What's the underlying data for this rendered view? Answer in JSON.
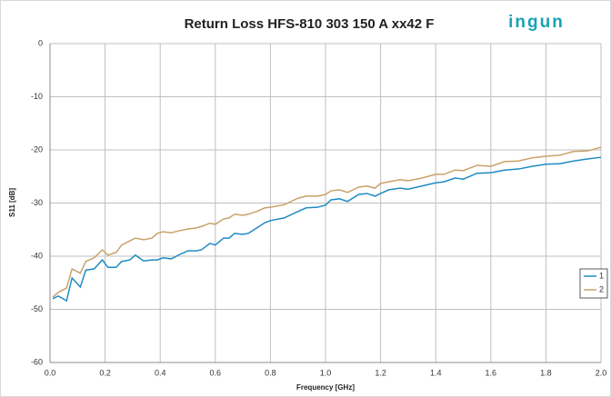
{
  "chart_data": {
    "type": "line",
    "title": "Return Loss HFS-810 303 150 A xx42 F",
    "logo": "ingun",
    "x_label": "Frequency [GHz]",
    "y_label": "S11 [dB]",
    "x": [
      0.01,
      0.03,
      0.06,
      0.08,
      0.11,
      0.13,
      0.16,
      0.19,
      0.21,
      0.24,
      0.26,
      0.29,
      0.31,
      0.34,
      0.37,
      0.39,
      0.41,
      0.44,
      0.47,
      0.5,
      0.53,
      0.55,
      0.58,
      0.6,
      0.63,
      0.65,
      0.67,
      0.7,
      0.72,
      0.75,
      0.78,
      0.8,
      0.85,
      0.9,
      0.93,
      0.97,
      1.0,
      1.02,
      1.05,
      1.08,
      1.12,
      1.15,
      1.18,
      1.2,
      1.23,
      1.27,
      1.3,
      1.35,
      1.4,
      1.43,
      1.47,
      1.5,
      1.55,
      1.6,
      1.65,
      1.7,
      1.75,
      1.8,
      1.85,
      1.9,
      1.95,
      2.0
    ],
    "series": [
      {
        "name": "1",
        "color": "#1f8bc4",
        "values": [
          -48.0,
          -47.5,
          -48.4,
          -44.1,
          -45.8,
          -42.6,
          -42.4,
          -40.7,
          -42.1,
          -42.1,
          -41.0,
          -40.7,
          -39.8,
          -40.9,
          -40.7,
          -40.7,
          -40.3,
          -40.5,
          -39.7,
          -39.0,
          -39.0,
          -38.8,
          -37.6,
          -37.9,
          -36.6,
          -36.6,
          -35.7,
          -35.9,
          -35.7,
          -34.7,
          -33.7,
          -33.3,
          -32.8,
          -31.6,
          -30.9,
          -30.8,
          -30.4,
          -29.4,
          -29.2,
          -29.7,
          -28.4,
          -28.2,
          -28.7,
          -28.2,
          -27.5,
          -27.2,
          -27.4,
          -26.8,
          -26.2,
          -26.0,
          -25.3,
          -25.5,
          -24.4,
          -24.3,
          -23.8,
          -23.6,
          -23.1,
          -22.7,
          -22.6,
          -22.1,
          -21.7,
          -21.4
        ]
      },
      {
        "name": "2",
        "color": "#c9a26a",
        "values": [
          -47.7,
          -46.8,
          -46.0,
          -42.4,
          -43.2,
          -41.0,
          -40.3,
          -38.8,
          -39.8,
          -39.3,
          -37.9,
          -37.1,
          -36.6,
          -36.9,
          -36.6,
          -35.7,
          -35.4,
          -35.6,
          -35.2,
          -34.9,
          -34.7,
          -34.4,
          -33.8,
          -34.0,
          -33.0,
          -32.8,
          -32.1,
          -32.3,
          -32.1,
          -31.6,
          -30.9,
          -30.8,
          -30.3,
          -29.1,
          -28.7,
          -28.7,
          -28.4,
          -27.7,
          -27.5,
          -28.0,
          -27.0,
          -26.8,
          -27.2,
          -26.3,
          -26.0,
          -25.6,
          -25.8,
          -25.3,
          -24.6,
          -24.6,
          -23.8,
          -23.9,
          -22.9,
          -23.1,
          -22.2,
          -22.1,
          -21.5,
          -21.2,
          -21.0,
          -20.3,
          -20.2,
          -19.5
        ]
      }
    ],
    "xlim": [
      0,
      2
    ],
    "xticks": [
      {
        "value": 0,
        "label": "0.0"
      },
      {
        "value": 0.2,
        "label": "0.2"
      },
      {
        "value": 0.4,
        "label": "0.4"
      },
      {
        "value": 0.6,
        "label": "0.6"
      },
      {
        "value": 0.8,
        "label": "0.8"
      },
      {
        "value": 1,
        "label": "1.0"
      },
      {
        "value": 1.2,
        "label": "1.2"
      },
      {
        "value": 1.4,
        "label": "1.4"
      },
      {
        "value": 1.6,
        "label": "1.6"
      },
      {
        "value": 1.8,
        "label": "1.8"
      },
      {
        "value": 2,
        "label": "2.0"
      }
    ],
    "ylim": [
      -60,
      0
    ],
    "yticks": [
      0,
      -10,
      -20,
      -30,
      -40,
      -50,
      -60
    ],
    "grid": true,
    "legend": "right"
  }
}
